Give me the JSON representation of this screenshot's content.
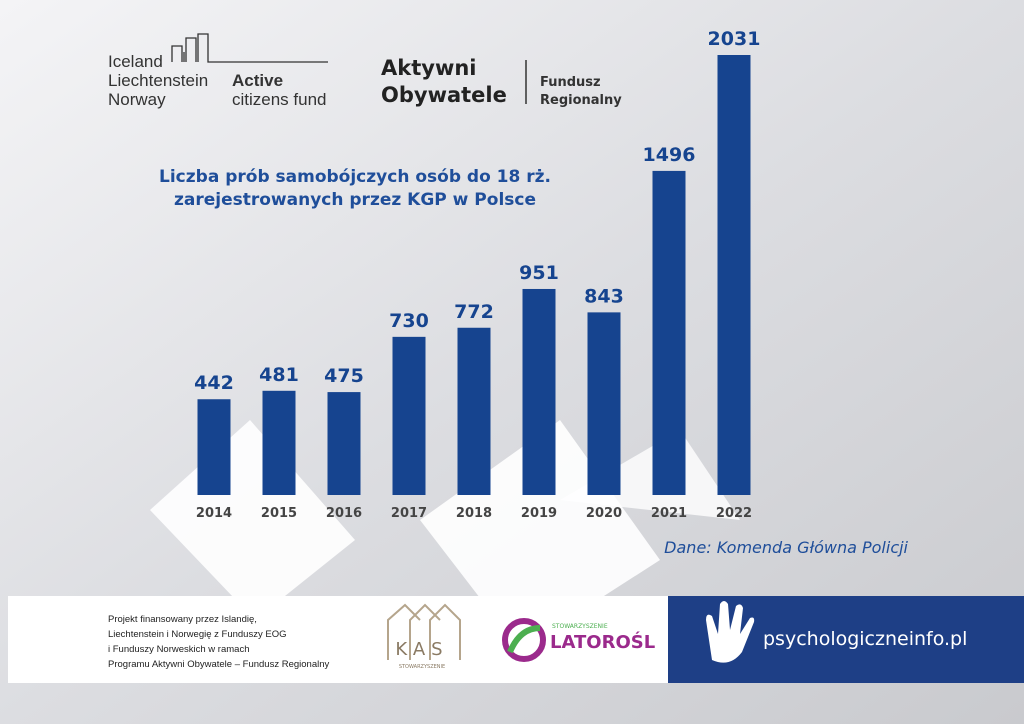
{
  "header": {
    "eea": [
      "Iceland",
      "Liechtenstein",
      "Norway"
    ],
    "acf": [
      "Active",
      "citizens fund"
    ],
    "ao": [
      "Aktywni",
      "Obywatele"
    ],
    "fr": [
      "Fundusz",
      "Regionalny"
    ]
  },
  "chart_data": {
    "type": "bar",
    "title": [
      "Liczba prób samobójczych osób do 18 rż.",
      "zarejestrowanych przez KGP w Polsce"
    ],
    "categories": [
      "2014",
      "2015",
      "2016",
      "2017",
      "2018",
      "2019",
      "2020",
      "2021",
      "2022"
    ],
    "values": [
      442,
      481,
      475,
      730,
      772,
      951,
      843,
      1496,
      2031
    ],
    "color": "#16448f",
    "source": "Dane: Komenda Główna Policji"
  },
  "footer": {
    "lines": [
      "Projekt finansowany przez Islandię,",
      "Liechtenstein i Norwegię z Funduszy EOG",
      "i Funduszy Norweskich w ramach",
      "Programu Aktywni Obywatele – Fundusz Regionalny"
    ],
    "kas": "KAS",
    "kas_sub": "STOWARZYSZENIE",
    "lat_sub": "STOWARZYSZENIE",
    "lat": "LATOROŚL",
    "site": "psychologiczneinfo.pl"
  }
}
